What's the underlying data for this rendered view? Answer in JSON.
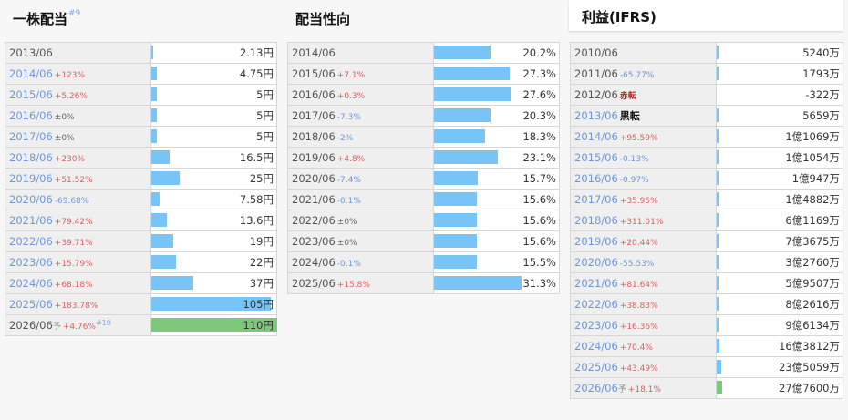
{
  "div_per_share": {
    "title": "一株配当",
    "title_note": "#9",
    "max": 110,
    "rows": [
      {
        "year": "2013/06",
        "change": "",
        "dir": "",
        "value": "2.13円",
        "v": 2.13,
        "link": false
      },
      {
        "year": "2014/06",
        "change": "+123%",
        "dir": "up",
        "value": "4.75円",
        "v": 4.75,
        "link": true
      },
      {
        "year": "2015/06",
        "change": "+5.26%",
        "dir": "up",
        "value": "5円",
        "v": 5,
        "link": true
      },
      {
        "year": "2016/06",
        "change": "±0%",
        "dir": "flat",
        "value": "5円",
        "v": 5,
        "link": true
      },
      {
        "year": "2017/06",
        "change": "±0%",
        "dir": "flat",
        "value": "5円",
        "v": 5,
        "link": true
      },
      {
        "year": "2018/06",
        "change": "+230%",
        "dir": "up",
        "value": "16.5円",
        "v": 16.5,
        "link": true
      },
      {
        "year": "2019/06",
        "change": "+51.52%",
        "dir": "up",
        "value": "25円",
        "v": 25,
        "link": true
      },
      {
        "year": "2020/06",
        "change": "-69.68%",
        "dir": "down",
        "value": "7.58円",
        "v": 7.58,
        "link": true
      },
      {
        "year": "2021/06",
        "change": "+79.42%",
        "dir": "up",
        "value": "13.6円",
        "v": 13.6,
        "link": true
      },
      {
        "year": "2022/06",
        "change": "+39.71%",
        "dir": "up",
        "value": "19円",
        "v": 19,
        "link": true
      },
      {
        "year": "2023/06",
        "change": "+15.79%",
        "dir": "up",
        "value": "22円",
        "v": 22,
        "link": true
      },
      {
        "year": "2024/06",
        "change": "+68.18%",
        "dir": "up",
        "value": "37円",
        "v": 37,
        "link": true
      },
      {
        "year": "2025/06",
        "change": "+183.78%",
        "dir": "up",
        "value": "105円",
        "v": 105,
        "link": true
      },
      {
        "year": "2026/06",
        "forecast_mark": "予",
        "change": "+4.76%",
        "dir": "up",
        "note": "#10",
        "star": "*",
        "value": "110円",
        "v": 110,
        "link": false,
        "forecast": true
      }
    ]
  },
  "payout_ratio": {
    "title": "配当性向",
    "max": 45,
    "rows": [
      {
        "year": "2014/06",
        "change": "",
        "dir": "",
        "value": "20.2%",
        "v": 20.2
      },
      {
        "year": "2015/06",
        "change": "+7.1%",
        "dir": "up",
        "value": "27.3%",
        "v": 27.3
      },
      {
        "year": "2016/06",
        "change": "+0.3%",
        "dir": "up",
        "value": "27.6%",
        "v": 27.6
      },
      {
        "year": "2017/06",
        "change": "-7.3%",
        "dir": "down",
        "value": "20.3%",
        "v": 20.3
      },
      {
        "year": "2018/06",
        "change": "-2%",
        "dir": "down",
        "value": "18.3%",
        "v": 18.3
      },
      {
        "year": "2019/06",
        "change": "+4.8%",
        "dir": "up",
        "value": "23.1%",
        "v": 23.1
      },
      {
        "year": "2020/06",
        "change": "-7.4%",
        "dir": "down",
        "value": "15.7%",
        "v": 15.7
      },
      {
        "year": "2021/06",
        "change": "-0.1%",
        "dir": "down",
        "value": "15.6%",
        "v": 15.6
      },
      {
        "year": "2022/06",
        "change": "±0%",
        "dir": "flat",
        "value": "15.6%",
        "v": 15.6
      },
      {
        "year": "2023/06",
        "change": "±0%",
        "dir": "flat",
        "value": "15.6%",
        "v": 15.6
      },
      {
        "year": "2024/06",
        "change": "-0.1%",
        "dir": "down",
        "value": "15.5%",
        "v": 15.5
      },
      {
        "year": "2025/06",
        "change": "+15.8%",
        "dir": "up",
        "value": "31.3%",
        "v": 31.3
      }
    ]
  },
  "profit": {
    "title": "利益(IFRS)",
    "max": 6000000,
    "rows": [
      {
        "year": "2010/06",
        "change": "",
        "dir": "",
        "value": "5240万",
        "v": 5240,
        "link": false
      },
      {
        "year": "2011/06",
        "change": "-65.77%",
        "dir": "down",
        "value": "1793万",
        "v": 1793,
        "link": false
      },
      {
        "year": "2012/06",
        "change": "赤転",
        "dir": "neg",
        "value": "-322万",
        "v": -322,
        "link": false
      },
      {
        "year": "2013/06",
        "change": "黒転",
        "dir": "posbold",
        "value": "5659万",
        "v": 5659,
        "link": true
      },
      {
        "year": "2014/06",
        "change": "+95.59%",
        "dir": "up",
        "value": "1億1069万",
        "v": 11069,
        "link": true
      },
      {
        "year": "2015/06",
        "change": "-0.13%",
        "dir": "down",
        "value": "1億1054万",
        "v": 11054,
        "link": true
      },
      {
        "year": "2016/06",
        "change": "-0.97%",
        "dir": "down",
        "value": "1億947万",
        "v": 10947,
        "link": true
      },
      {
        "year": "2017/06",
        "change": "+35.95%",
        "dir": "up",
        "value": "1億4882万",
        "v": 14882,
        "link": true
      },
      {
        "year": "2018/06",
        "change": "+311.01%",
        "dir": "up",
        "value": "6億1169万",
        "v": 61169,
        "link": true
      },
      {
        "year": "2019/06",
        "change": "+20.44%",
        "dir": "up",
        "value": "7億3675万",
        "v": 73675,
        "link": true
      },
      {
        "year": "2020/06",
        "change": "-55.53%",
        "dir": "down",
        "value": "3億2760万",
        "v": 32760,
        "link": true
      },
      {
        "year": "2021/06",
        "change": "+81.64%",
        "dir": "up",
        "value": "5億9507万",
        "v": 59507,
        "link": true
      },
      {
        "year": "2022/06",
        "change": "+38.83%",
        "dir": "up",
        "value": "8億2616万",
        "v": 82616,
        "link": true
      },
      {
        "year": "2023/06",
        "change": "+16.36%",
        "dir": "up",
        "value": "9億6134万",
        "v": 96134,
        "link": true
      },
      {
        "year": "2024/06",
        "change": "+70.4%",
        "dir": "up",
        "value": "16億3812万",
        "v": 163812,
        "link": true
      },
      {
        "year": "2025/06",
        "change": "+43.49%",
        "dir": "up",
        "value": "23億5059万",
        "v": 235059,
        "link": true
      },
      {
        "year": "2026/06",
        "forecast_mark": "予",
        "change": "+18.1%",
        "dir": "up",
        "value": "27億7600万",
        "v": 277600,
        "link": true,
        "forecast": true
      }
    ]
  }
}
